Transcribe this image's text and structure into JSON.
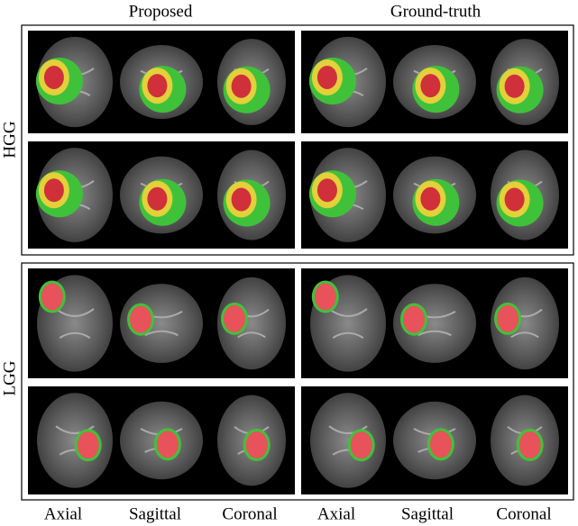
{
  "columns": [
    "Proposed",
    "Ground-truth"
  ],
  "rows": [
    "HGG",
    "LGG"
  ],
  "views": [
    "Axial",
    "Sagittal",
    "Coronal",
    "Axial",
    "Sagittal",
    "Coronal"
  ]
}
